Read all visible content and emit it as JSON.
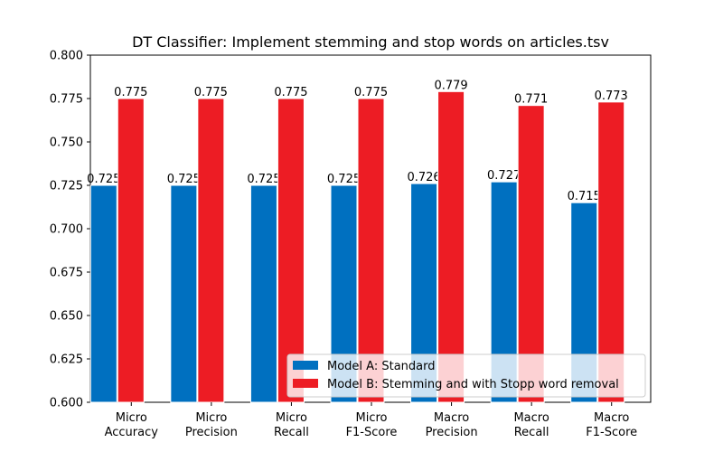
{
  "chart_data": {
    "type": "bar",
    "title": "DT Classifier: Implement stemming and stop words on articles.tsv",
    "xlabel": "",
    "ylabel": "",
    "ylim": [
      0.6,
      0.8
    ],
    "yticks": [
      "0.600",
      "0.625",
      "0.650",
      "0.675",
      "0.700",
      "0.725",
      "0.750",
      "0.775",
      "0.800"
    ],
    "categories": [
      [
        "Micro",
        "Accuracy"
      ],
      [
        "Micro",
        "Precision"
      ],
      [
        "Micro",
        "Recall"
      ],
      [
        "Micro",
        "F1-Score"
      ],
      [
        "Macro",
        "Precision"
      ],
      [
        "Macro",
        "Recall"
      ],
      [
        "Macro",
        "F1-Score"
      ]
    ],
    "series": [
      {
        "name": "Model A: Standard",
        "color": "#0070c0",
        "values": [
          0.725,
          0.725,
          0.725,
          0.725,
          0.726,
          0.727,
          0.715
        ],
        "labels": [
          "0.725",
          "0.725",
          "0.725",
          "0.725",
          "0.726",
          "0.727",
          "0.715"
        ]
      },
      {
        "name": "Model B: Stemming and with Stopp word removal",
        "color": "#ed1c24",
        "values": [
          0.775,
          0.775,
          0.775,
          0.775,
          0.779,
          0.771,
          0.773
        ],
        "labels": [
          "0.775",
          "0.775",
          "0.775",
          "0.775",
          "0.779",
          "0.771",
          "0.773"
        ]
      }
    ],
    "legend_position": "lower-right",
    "grid": false
  }
}
